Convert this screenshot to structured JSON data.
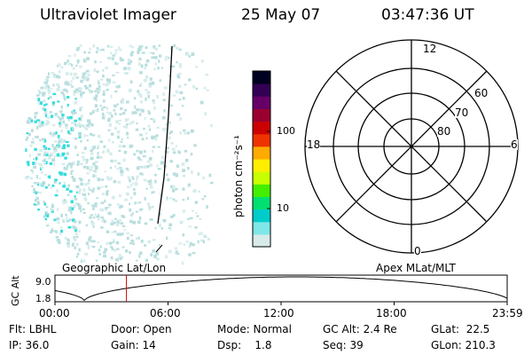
{
  "header": {
    "instrument": "Ultraviolet Imager",
    "date": "25 May 07",
    "time": "03:47:36 UT"
  },
  "colorbar": {
    "unit_label": "photon cm⁻²s⁻¹",
    "ticks": [
      "100",
      "10"
    ],
    "colors": [
      "#d7ebeb",
      "#7ee7e7",
      "#00cccc",
      "#00e070",
      "#44ee00",
      "#c8ff00",
      "#ffee00",
      "#ffaa00",
      "#ee3300",
      "#cc0000",
      "#990030",
      "#660066",
      "#330055",
      "#000020"
    ]
  },
  "polar": {
    "mlt_labels": {
      "top": "12",
      "left": "18",
      "right": "6",
      "bottom": "0"
    },
    "lat_labels": [
      "60",
      "70",
      "80"
    ]
  },
  "altitude_plot": {
    "ylabel": "GC Alt",
    "y_ticks": [
      "9.0",
      "1.8"
    ],
    "left_title": "Geographic Lat/Lon",
    "right_title": "Apex MLat/MLT",
    "x_ticks": [
      "00:00",
      "06:00",
      "12:00",
      "18:00",
      "23:59"
    ],
    "marker_time": "03:47:36"
  },
  "status": {
    "flt": "Flt: LBHL",
    "ip": "IP: 36.0",
    "door": "Door: Open",
    "gain": "Gain: 14",
    "mode": "Mode: Normal",
    "dsp": "Dsp:    1.8",
    "gcalt": "GC Alt: 2.4 Re",
    "seq": "Seq: 39",
    "glat": "GLat:  22.5",
    "glon": "GLon: 210.3"
  },
  "colors": {
    "accent_marker": "#cc0000",
    "speckle": "#b8dede",
    "speckle_bright": "#33dddd"
  }
}
